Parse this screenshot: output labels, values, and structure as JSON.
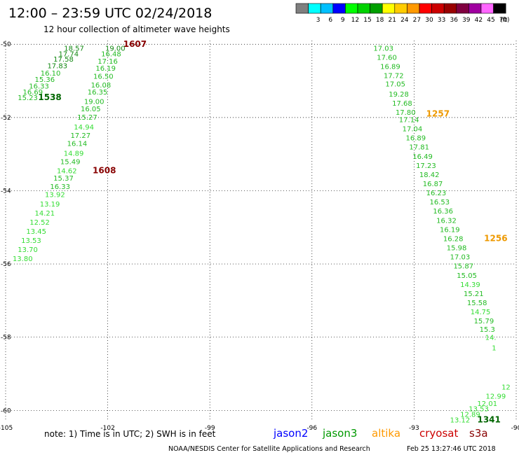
{
  "header": {
    "title": "12:00 – 23:59 UTC 02/24/2018",
    "subtitle": "12 hour collection of altimeter wave heights"
  },
  "colorbar": {
    "unit_label": "(ft)",
    "bins": [
      {
        "label": "",
        "color": "#7f7f7f"
      },
      {
        "label": "3",
        "color": "#00ffff"
      },
      {
        "label": "6",
        "color": "#00c0ff"
      },
      {
        "label": "9",
        "color": "#0000ff"
      },
      {
        "label": "12",
        "color": "#00ff00"
      },
      {
        "label": "15",
        "color": "#00d200"
      },
      {
        "label": "18",
        "color": "#009f00"
      },
      {
        "label": "21",
        "color": "#ffff00"
      },
      {
        "label": "24",
        "color": "#ffcc00"
      },
      {
        "label": "27",
        "color": "#ff9900"
      },
      {
        "label": "30",
        "color": "#ff0000"
      },
      {
        "label": "33",
        "color": "#cc0000"
      },
      {
        "label": "36",
        "color": "#990000"
      },
      {
        "label": "39",
        "color": "#800040"
      },
      {
        "label": "42",
        "color": "#a000a0"
      },
      {
        "label": "45",
        "color": "#ff66ff"
      },
      {
        "label": "70",
        "color": "#000000"
      }
    ]
  },
  "footer": {
    "note": "note: 1) Time is in UTC; 2) SWH is in feet",
    "credit": "NOAA/NESDIS Center for Satellite Applications and Research",
    "timestamp": "Feb 25 13:27:46 UTC 2018",
    "legend": [
      {
        "name": "jason2",
        "color": "#0000ff"
      },
      {
        "name": "jason3",
        "color": "#009900"
      },
      {
        "name": "altika",
        "color": "#ff9900"
      },
      {
        "name": "cryosat",
        "color": "#cc0000"
      },
      {
        "name": "s3a",
        "color": "#880000"
      }
    ]
  },
  "colors": {
    "c12": "#33dd33",
    "c15": "#22bb22",
    "c18": "#118811",
    "altika": "#ee9900",
    "cryosat": "#880000",
    "s3a": "#006600"
  },
  "chart_data": {
    "type": "scatter",
    "xlim": [
      -105,
      -90
    ],
    "ylim": [
      -60.3,
      -49.9
    ],
    "x_ticks": [
      -105,
      -102,
      -99,
      -96,
      -93,
      -90
    ],
    "y_ticks": [
      -50,
      -52,
      -54,
      -56,
      -58,
      -60
    ],
    "x_tick_labels": [
      "-105",
      "-102",
      "-99",
      "-96",
      "-93",
      "-90"
    ],
    "y_tick_labels": [
      "-50",
      "-52",
      "-54",
      "-56",
      "-58",
      "-60"
    ],
    "grid": true,
    "tracks": [
      {
        "name": "track-a-northwest",
        "points": [
          {
            "lon": -102.99,
            "lat": -50.1,
            "value": "18.57",
            "cls": "c18"
          },
          {
            "lon": -103.15,
            "lat": -50.25,
            "value": "17.74",
            "cls": "c18"
          },
          {
            "lon": -103.3,
            "lat": -50.4,
            "value": "17.58",
            "cls": "c18"
          },
          {
            "lon": -103.48,
            "lat": -50.58,
            "value": "17.83",
            "cls": "c18"
          },
          {
            "lon": -103.68,
            "lat": -50.78,
            "value": "16.10",
            "cls": "c15"
          },
          {
            "lon": -103.85,
            "lat": -50.95,
            "value": "15.36",
            "cls": "c15"
          },
          {
            "lon": -104.02,
            "lat": -51.13,
            "value": "16.33",
            "cls": "c15"
          },
          {
            "lon": -104.2,
            "lat": -51.3,
            "value": "16.69",
            "cls": "c15"
          },
          {
            "lon": -104.35,
            "lat": -51.45,
            "value": "15.23",
            "cls": "c15"
          }
        ]
      },
      {
        "name": "track-b-west",
        "points": [
          {
            "lon": -101.78,
            "lat": -50.1,
            "value": "19.00",
            "cls": "c18"
          },
          {
            "lon": -101.9,
            "lat": -50.25,
            "value": "16.48",
            "cls": "c15"
          },
          {
            "lon": -102.0,
            "lat": -50.45,
            "value": "17.16",
            "cls": "c15"
          },
          {
            "lon": -102.06,
            "lat": -50.65,
            "value": "16.19",
            "cls": "c15"
          },
          {
            "lon": -102.13,
            "lat": -50.87,
            "value": "16.50",
            "cls": "c15"
          },
          {
            "lon": -102.2,
            "lat": -51.1,
            "value": "16.08",
            "cls": "c15"
          },
          {
            "lon": -102.3,
            "lat": -51.3,
            "value": "16.35",
            "cls": "c15"
          },
          {
            "lon": -102.4,
            "lat": -51.55,
            "value": "19.00",
            "cls": "c15"
          },
          {
            "lon": -102.5,
            "lat": -51.75,
            "value": "16.05",
            "cls": "c15"
          },
          {
            "lon": -102.6,
            "lat": -51.98,
            "value": "15.27",
            "cls": "c15"
          },
          {
            "lon": -102.7,
            "lat": -52.25,
            "value": "14.94",
            "cls": "c12"
          },
          {
            "lon": -102.8,
            "lat": -52.48,
            "value": "17.27",
            "cls": "c15"
          },
          {
            "lon": -102.9,
            "lat": -52.7,
            "value": "16.14",
            "cls": "c15"
          },
          {
            "lon": -103.0,
            "lat": -52.97,
            "value": "14.89",
            "cls": "c12"
          },
          {
            "lon": -103.1,
            "lat": -53.2,
            "value": "15.49",
            "cls": "c15"
          },
          {
            "lon": -103.2,
            "lat": -53.45,
            "value": "14.62",
            "cls": "c12"
          },
          {
            "lon": -103.3,
            "lat": -53.65,
            "value": "15.37",
            "cls": "c15"
          },
          {
            "lon": -103.4,
            "lat": -53.88,
            "value": "16.33",
            "cls": "c15"
          },
          {
            "lon": -103.55,
            "lat": -54.1,
            "value": "13.92",
            "cls": "c12"
          },
          {
            "lon": -103.7,
            "lat": -54.35,
            "value": "13.19",
            "cls": "c12"
          },
          {
            "lon": -103.85,
            "lat": -54.6,
            "value": "14.21",
            "cls": "c12"
          },
          {
            "lon": -104.0,
            "lat": -54.85,
            "value": "12.52",
            "cls": "c12"
          },
          {
            "lon": -104.1,
            "lat": -55.1,
            "value": "13.45",
            "cls": "c12"
          },
          {
            "lon": -104.25,
            "lat": -55.35,
            "value": "13.53",
            "cls": "c12"
          },
          {
            "lon": -104.35,
            "lat": -55.6,
            "value": "13.70",
            "cls": "c12"
          },
          {
            "lon": -104.5,
            "lat": -55.85,
            "value": "13.80",
            "cls": "c12"
          }
        ]
      },
      {
        "name": "track-c-east",
        "points": [
          {
            "lon": -93.9,
            "lat": -50.1,
            "value": "17.03",
            "cls": "c15"
          },
          {
            "lon": -93.8,
            "lat": -50.35,
            "value": "17.60",
            "cls": "c15"
          },
          {
            "lon": -93.7,
            "lat": -50.6,
            "value": "16.89",
            "cls": "c15"
          },
          {
            "lon": -93.6,
            "lat": -50.85,
            "value": "17.72",
            "cls": "c15"
          },
          {
            "lon": -93.55,
            "lat": -51.08,
            "value": "17.05",
            "cls": "c15"
          },
          {
            "lon": -93.45,
            "lat": -51.35,
            "value": "19.28",
            "cls": "c15"
          },
          {
            "lon": -93.35,
            "lat": -51.6,
            "value": "17.68",
            "cls": "c15"
          },
          {
            "lon": -93.25,
            "lat": -51.85,
            "value": "17.80",
            "cls": "c15"
          },
          {
            "lon": -93.15,
            "lat": -52.05,
            "value": "17.14",
            "cls": "c15"
          },
          {
            "lon": -93.05,
            "lat": -52.3,
            "value": "17.04",
            "cls": "c15"
          },
          {
            "lon": -92.95,
            "lat": -52.55,
            "value": "16.89",
            "cls": "c15"
          },
          {
            "lon": -92.85,
            "lat": -52.8,
            "value": "17.81",
            "cls": "c15"
          },
          {
            "lon": -92.75,
            "lat": -53.05,
            "value": "16.49",
            "cls": "c15"
          },
          {
            "lon": -92.65,
            "lat": -53.3,
            "value": "17.23",
            "cls": "c15"
          },
          {
            "lon": -92.55,
            "lat": -53.55,
            "value": "18.42",
            "cls": "c15"
          },
          {
            "lon": -92.45,
            "lat": -53.8,
            "value": "16.87",
            "cls": "c15"
          },
          {
            "lon": -92.35,
            "lat": -54.05,
            "value": "16.23",
            "cls": "c15"
          },
          {
            "lon": -92.25,
            "lat": -54.3,
            "value": "16.53",
            "cls": "c15"
          },
          {
            "lon": -92.15,
            "lat": -54.55,
            "value": "16.36",
            "cls": "c15"
          },
          {
            "lon": -92.05,
            "lat": -54.8,
            "value": "16.32",
            "cls": "c15"
          },
          {
            "lon": -91.95,
            "lat": -55.05,
            "value": "16.19",
            "cls": "c15"
          },
          {
            "lon": -91.85,
            "lat": -55.3,
            "value": "16.28",
            "cls": "c15"
          },
          {
            "lon": -91.75,
            "lat": -55.55,
            "value": "15.98",
            "cls": "c15"
          },
          {
            "lon": -91.65,
            "lat": -55.8,
            "value": "17.03",
            "cls": "c15"
          },
          {
            "lon": -91.55,
            "lat": -56.05,
            "value": "15.87",
            "cls": "c15"
          },
          {
            "lon": -91.45,
            "lat": -56.3,
            "value": "15.05",
            "cls": "c15"
          },
          {
            "lon": -91.35,
            "lat": -56.55,
            "value": "14.39",
            "cls": "c12"
          },
          {
            "lon": -91.25,
            "lat": -56.8,
            "value": "15.21",
            "cls": "c15"
          },
          {
            "lon": -91.15,
            "lat": -57.05,
            "value": "15.58",
            "cls": "c15"
          },
          {
            "lon": -91.05,
            "lat": -57.3,
            "value": "14.75",
            "cls": "c12"
          },
          {
            "lon": -90.95,
            "lat": -57.55,
            "value": "15.79",
            "cls": "c15"
          },
          {
            "lon": -90.85,
            "lat": -57.78,
            "value": "15.3",
            "cls": "c15"
          },
          {
            "lon": -90.75,
            "lat": -58.0,
            "value": "14.",
            "cls": "c12"
          },
          {
            "lon": -90.65,
            "lat": -58.28,
            "value": "1",
            "cls": "c12"
          }
        ]
      },
      {
        "name": "track-d-southeast",
        "points": [
          {
            "lon": -90.3,
            "lat": -59.35,
            "value": "12",
            "cls": "c12"
          },
          {
            "lon": -90.6,
            "lat": -59.6,
            "value": "12.99",
            "cls": "c12"
          },
          {
            "lon": -90.85,
            "lat": -59.8,
            "value": "12.01",
            "cls": "c12"
          },
          {
            "lon": -91.1,
            "lat": -59.95,
            "value": "13.53",
            "cls": "c12"
          },
          {
            "lon": -91.35,
            "lat": -60.1,
            "value": "12.89",
            "cls": "c12"
          },
          {
            "lon": -91.65,
            "lat": -60.25,
            "value": "13.12",
            "cls": "c12"
          }
        ]
      }
    ],
    "time_labels": [
      {
        "lon": -101.2,
        "lat": -50.0,
        "value": "1607",
        "cls": "cryosat"
      },
      {
        "lon": -103.7,
        "lat": -51.45,
        "value": "1538",
        "cls": "s3a"
      },
      {
        "lon": -102.1,
        "lat": -53.45,
        "value": "1608",
        "cls": "cryosat"
      },
      {
        "lon": -92.3,
        "lat": -51.9,
        "value": "1257",
        "cls": "altika"
      },
      {
        "lon": -90.6,
        "lat": -55.3,
        "value": "1256",
        "cls": "altika"
      },
      {
        "lon": -90.8,
        "lat": -60.25,
        "value": "1341",
        "cls": "s3a"
      }
    ]
  }
}
